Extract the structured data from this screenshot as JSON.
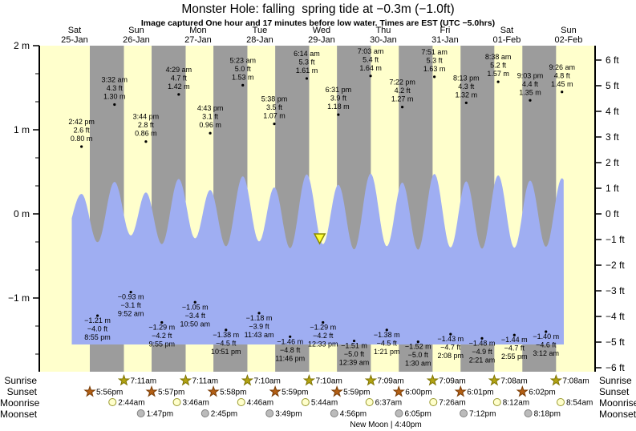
{
  "title": "Monster Hole: falling  spring tide at −0.3m (−1.0ft)",
  "subtitle": "Image captured One hour and 17 minutes before low water. Times are EST (UTC −5.0hrs)",
  "row_labels": {
    "sunrise": "Sunrise",
    "sunset": "Sunset",
    "moonrise": "Moonrise",
    "moonset": "Moonset"
  },
  "moon_phase_note": "New Moon | 4:40pm",
  "colors": {
    "day_band": "#FFFFCC",
    "night_band": "#9C9C9C",
    "water": "#9FAEF2",
    "day_label": "#FF2222",
    "sunrise_star": "#B2A312",
    "sunrise_star_edge": "#7E7300",
    "sunset_star": "#B35F14",
    "sunset_star_edge": "#7A3E08",
    "moonrise_circle": "#FFFFCC",
    "moonrise_circle_edge": "#99992E",
    "moonset_circle": "#BBBBBB",
    "moonset_circle_edge": "#7F7F7F",
    "marker_fill": "#FFFF33",
    "marker_edge": "#8B8B00",
    "axis": "#000000"
  },
  "chart_data": {
    "type": "area",
    "title": "Monster Hole: falling  spring tide at −0.3m (−1.0ft)",
    "timezone_note": "EST (UTC −5.0hrs)",
    "days": [
      {
        "name": "Sat",
        "date": "25-Jan"
      },
      {
        "name": "Sun",
        "date": "26-Jan"
      },
      {
        "name": "Mon",
        "date": "27-Jan"
      },
      {
        "name": "Tue",
        "date": "28-Jan"
      },
      {
        "name": "Wed",
        "date": "29-Jan"
      },
      {
        "name": "Thu",
        "date": "30-Jan"
      },
      {
        "name": "Fri",
        "date": "31-Jan"
      },
      {
        "name": "Sat",
        "date": "01-Feb"
      },
      {
        "name": "Sun",
        "date": "02-Feb"
      }
    ],
    "y_axis_left": {
      "unit": "m",
      "ticks": [
        {
          "v": 2,
          "label": "2 m"
        },
        {
          "v": 1,
          "label": "1 m"
        },
        {
          "v": 0,
          "label": "0 m"
        },
        {
          "v": -1,
          "label": "−1 m"
        }
      ]
    },
    "y_axis_right": {
      "unit": "ft",
      "ticks": [
        {
          "v": 6,
          "label": "6 ft"
        },
        {
          "v": 5,
          "label": "5 ft"
        },
        {
          "v": 4,
          "label": "4 ft"
        },
        {
          "v": 3,
          "label": "3 ft"
        },
        {
          "v": 2,
          "label": "2 ft"
        },
        {
          "v": 1,
          "label": "1 ft"
        },
        {
          "v": 0,
          "label": "0 ft"
        },
        {
          "v": -1,
          "label": "−1 ft"
        },
        {
          "v": -2,
          "label": "−2 ft"
        },
        {
          "v": -3,
          "label": "−3 ft"
        },
        {
          "v": -4,
          "label": "−4 ft"
        },
        {
          "v": -5,
          "label": "−5 ft"
        },
        {
          "v": -6,
          "label": "−6 ft"
        }
      ]
    },
    "high_tides": [
      {
        "day": 0,
        "hour": 14.7,
        "time": "2:42 pm",
        "ft": "2.6 ft",
        "m": "0.80 m",
        "v": 0.8
      },
      {
        "day": 1,
        "hour": 3.5333,
        "time": "3:32 am",
        "ft": "4.3 ft",
        "m": "1.30 m",
        "v": 1.3
      },
      {
        "day": 1,
        "hour": 15.7333,
        "time": "3:44 pm",
        "ft": "2.8 ft",
        "m": "0.86 m",
        "v": 0.86
      },
      {
        "day": 2,
        "hour": 4.4833,
        "time": "4:29 am",
        "ft": "4.7 ft",
        "m": "1.42 m",
        "v": 1.42
      },
      {
        "day": 2,
        "hour": 16.7167,
        "time": "4:43 pm",
        "ft": "3.1 ft",
        "m": "0.96 m",
        "v": 0.96
      },
      {
        "day": 3,
        "hour": 5.3833,
        "time": "5:23 am",
        "ft": "5.0 ft",
        "m": "1.53 m",
        "v": 1.53
      },
      {
        "day": 3,
        "hour": 17.6333,
        "time": "5:38 pm",
        "ft": "3.5 ft",
        "m": "1.07 m",
        "v": 1.07
      },
      {
        "day": 4,
        "hour": 6.2333,
        "time": "6:14 am",
        "ft": "5.3 ft",
        "m": "1.61 m",
        "v": 1.61
      },
      {
        "day": 4,
        "hour": 18.5167,
        "time": "6:31 pm",
        "ft": "3.9 ft",
        "m": "1.18 m",
        "v": 1.18
      },
      {
        "day": 5,
        "hour": 7.05,
        "time": "7:03 am",
        "ft": "5.4 ft",
        "m": "1.64 m",
        "v": 1.64
      },
      {
        "day": 5,
        "hour": 19.3667,
        "time": "7:22 pm",
        "ft": "4.2 ft",
        "m": "1.27 m",
        "v": 1.27
      },
      {
        "day": 6,
        "hour": 7.85,
        "time": "7:51 am",
        "ft": "5.3 ft",
        "m": "1.63 m",
        "v": 1.63
      },
      {
        "day": 6,
        "hour": 20.2167,
        "time": "8:13 pm",
        "ft": "4.3 ft",
        "m": "1.32 m",
        "v": 1.32
      },
      {
        "day": 7,
        "hour": 8.6333,
        "time": "8:38 am",
        "ft": "5.2 ft",
        "m": "1.57 m",
        "v": 1.57
      },
      {
        "day": 7,
        "hour": 21.05,
        "time": "9:03 pm",
        "ft": "4.4 ft",
        "m": "1.35 m",
        "v": 1.35
      },
      {
        "day": 8,
        "hour": 9.4333,
        "time": "9:26 am",
        "ft": "4.8 ft",
        "m": "1.45 m",
        "v": 1.45
      }
    ],
    "low_tides": [
      {
        "day": 0,
        "hour": 20.9167,
        "time": "8:55 pm",
        "ft": "−4.0 ft",
        "m": "−1.21 m",
        "v": -1.21
      },
      {
        "day": 1,
        "hour": 9.8667,
        "time": "9:52 am",
        "ft": "−3.1 ft",
        "m": "−0.93 m",
        "v": -0.93
      },
      {
        "day": 1,
        "hour": 21.9167,
        "time": "9:55 pm",
        "ft": "−4.2 ft",
        "m": "−1.29 m",
        "v": -1.29
      },
      {
        "day": 2,
        "hour": 10.8333,
        "time": "10:50 am",
        "ft": "−3.4 ft",
        "m": "−1.05 m",
        "v": -1.05
      },
      {
        "day": 2,
        "hour": 22.85,
        "time": "10:51 pm",
        "ft": "−4.5 ft",
        "m": "−1.38 m",
        "v": -1.38
      },
      {
        "day": 3,
        "hour": 11.7167,
        "time": "11:43 am",
        "ft": "−3.9 ft",
        "m": "−1.18 m",
        "v": -1.18
      },
      {
        "day": 3,
        "hour": 23.7667,
        "time": "11:46 pm",
        "ft": "−4.8 ft",
        "m": "−1.46 m",
        "v": -1.46
      },
      {
        "day": 4,
        "hour": 12.55,
        "time": "12:33 pm",
        "ft": "−4.2 ft",
        "m": "−1.29 m",
        "v": -1.29
      },
      {
        "day": 5,
        "hour": 0.65,
        "time": "12:39 am",
        "ft": "−5.0 ft",
        "m": "−1.51 m",
        "v": -1.51
      },
      {
        "day": 5,
        "hour": 13.35,
        "time": "1:21 pm",
        "ft": "−4.5 ft",
        "m": "−1.38 m",
        "v": -1.38
      },
      {
        "day": 6,
        "hour": 1.5,
        "time": "1:30 am",
        "ft": "−5.0 ft",
        "m": "−1.52 m",
        "v": -1.52
      },
      {
        "day": 6,
        "hour": 14.1333,
        "time": "2:08 pm",
        "ft": "−4.7 ft",
        "m": "−1.43 m",
        "v": -1.43
      },
      {
        "day": 7,
        "hour": 2.35,
        "time": "2:21 am",
        "ft": "−4.9 ft",
        "m": "−1.48 m",
        "v": -1.48
      },
      {
        "day": 7,
        "hour": 14.9167,
        "time": "2:55 pm",
        "ft": "−4.7 ft",
        "m": "−1.44 m",
        "v": -1.44
      },
      {
        "day": 8,
        "hour": 3.2,
        "time": "3:12 am",
        "ft": "−4.6 ft",
        "m": "−1.40 m",
        "v": -1.4
      }
    ],
    "sun": {
      "sunrise": [
        {
          "day": 1,
          "hour": 7.1833,
          "time": "7:11am"
        },
        {
          "day": 2,
          "hour": 7.1833,
          "time": "7:11am"
        },
        {
          "day": 3,
          "hour": 7.1667,
          "time": "7:10am"
        },
        {
          "day": 4,
          "hour": 7.1667,
          "time": "7:10am"
        },
        {
          "day": 5,
          "hour": 7.15,
          "time": "7:09am"
        },
        {
          "day": 6,
          "hour": 7.15,
          "time": "7:09am"
        },
        {
          "day": 7,
          "hour": 7.1333,
          "time": "7:08am"
        },
        {
          "day": 8,
          "hour": 7.1333,
          "time": "7:08am"
        }
      ],
      "sunset": [
        {
          "day": 0,
          "hour": 17.9333,
          "time": "5:56pm"
        },
        {
          "day": 1,
          "hour": 17.95,
          "time": "5:57pm"
        },
        {
          "day": 2,
          "hour": 17.9667,
          "time": "5:58pm"
        },
        {
          "day": 3,
          "hour": 17.9833,
          "time": "5:59pm"
        },
        {
          "day": 4,
          "hour": 17.9833,
          "time": "5:59pm"
        },
        {
          "day": 5,
          "hour": 18.0,
          "time": "6:00pm"
        },
        {
          "day": 6,
          "hour": 18.0167,
          "time": "6:01pm"
        },
        {
          "day": 7,
          "hour": 18.0333,
          "time": "6:02pm"
        }
      ]
    },
    "moon": {
      "moonrise": [
        {
          "day": 1,
          "hour": 2.7333,
          "time": "2:44am"
        },
        {
          "day": 2,
          "hour": 3.7667,
          "time": "3:46am"
        },
        {
          "day": 3,
          "hour": 4.7667,
          "time": "4:46am"
        },
        {
          "day": 4,
          "hour": 5.7333,
          "time": "5:44am"
        },
        {
          "day": 5,
          "hour": 6.6167,
          "time": "6:37am"
        },
        {
          "day": 6,
          "hour": 7.4333,
          "time": "7:26am"
        },
        {
          "day": 7,
          "hour": 8.2,
          "time": "8:12am"
        },
        {
          "day": 8,
          "hour": 8.9,
          "time": "8:54am"
        }
      ],
      "moonset": [
        {
          "day": 1,
          "hour": 13.7833,
          "time": "1:47pm"
        },
        {
          "day": 2,
          "hour": 14.75,
          "time": "2:45pm"
        },
        {
          "day": 3,
          "hour": 15.8167,
          "time": "3:49pm"
        },
        {
          "day": 4,
          "hour": 16.9333,
          "time": "4:56pm"
        },
        {
          "day": 5,
          "hour": 18.0833,
          "time": "6:05pm"
        },
        {
          "day": 6,
          "hour": 19.2,
          "time": "7:12pm"
        },
        {
          "day": 7,
          "hour": 20.3,
          "time": "8:18pm"
        }
      ]
    },
    "moon_phase": {
      "label": "New Moon | 4:40pm",
      "day": 4
    },
    "capture_marker": {
      "day": 4,
      "hour": 11.2667
    }
  }
}
